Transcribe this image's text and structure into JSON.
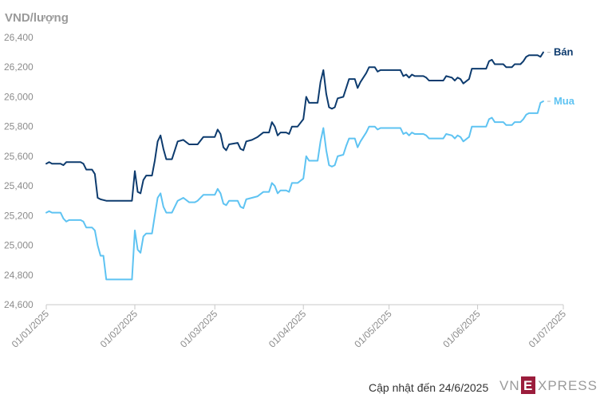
{
  "chart_data": {
    "type": "line",
    "ylabel": "VND/lượng",
    "ylim": [
      24600,
      26400
    ],
    "yticks": [
      "26,400",
      "26,200",
      "26,000",
      "25,800",
      "25,600",
      "25,400",
      "25,200",
      "25,000",
      "24,800",
      "24,600"
    ],
    "ytick_values": [
      26400,
      26200,
      26000,
      25800,
      25600,
      25400,
      25200,
      25000,
      24800,
      24600
    ],
    "xlim": [
      "2025-01-01",
      "2025-07-01"
    ],
    "xticks": [
      "01/01/2025",
      "01/02/2025",
      "01/03/2025",
      "01/04/2025",
      "01/05/2025",
      "01/06/2025",
      "01/07/2025"
    ],
    "xtick_dates": [
      "2025-01-01",
      "2025-02-01",
      "2025-03-01",
      "2025-04-01",
      "2025-05-01",
      "2025-06-01",
      "2025-07-01"
    ],
    "grid": false,
    "series": [
      {
        "name": "Bán",
        "color": "#0d3b6e",
        "points": [
          [
            "2025-01-01",
            25550
          ],
          [
            "2025-01-02",
            25560
          ],
          [
            "2025-01-03",
            25550
          ],
          [
            "2025-01-06",
            25550
          ],
          [
            "2025-01-07",
            25540
          ],
          [
            "2025-01-08",
            25560
          ],
          [
            "2025-01-13",
            25560
          ],
          [
            "2025-01-14",
            25550
          ],
          [
            "2025-01-15",
            25510
          ],
          [
            "2025-01-17",
            25510
          ],
          [
            "2025-01-18",
            25480
          ],
          [
            "2025-01-19",
            25320
          ],
          [
            "2025-01-20",
            25310
          ],
          [
            "2025-01-22",
            25300
          ],
          [
            "2025-01-27",
            25300
          ],
          [
            "2025-01-31",
            25300
          ],
          [
            "2025-02-01",
            25500
          ],
          [
            "2025-02-02",
            25360
          ],
          [
            "2025-02-03",
            25350
          ],
          [
            "2025-02-04",
            25440
          ],
          [
            "2025-02-05",
            25470
          ],
          [
            "2025-02-07",
            25470
          ],
          [
            "2025-02-08",
            25570
          ],
          [
            "2025-02-09",
            25700
          ],
          [
            "2025-02-10",
            25740
          ],
          [
            "2025-02-11",
            25650
          ],
          [
            "2025-02-12",
            25580
          ],
          [
            "2025-02-14",
            25580
          ],
          [
            "2025-02-16",
            25700
          ],
          [
            "2025-02-18",
            25710
          ],
          [
            "2025-02-20",
            25680
          ],
          [
            "2025-02-22",
            25680
          ],
          [
            "2025-02-23",
            25680
          ],
          [
            "2025-02-25",
            25730
          ],
          [
            "2025-02-27",
            25730
          ],
          [
            "2025-03-01",
            25730
          ],
          [
            "2025-03-02",
            25780
          ],
          [
            "2025-03-03",
            25750
          ],
          [
            "2025-03-04",
            25660
          ],
          [
            "2025-03-05",
            25640
          ],
          [
            "2025-03-06",
            25680
          ],
          [
            "2025-03-09",
            25690
          ],
          [
            "2025-03-10",
            25650
          ],
          [
            "2025-03-11",
            25640
          ],
          [
            "2025-03-12",
            25700
          ],
          [
            "2025-03-14",
            25710
          ],
          [
            "2025-03-16",
            25730
          ],
          [
            "2025-03-18",
            25760
          ],
          [
            "2025-03-20",
            25760
          ],
          [
            "2025-03-21",
            25830
          ],
          [
            "2025-03-22",
            25800
          ],
          [
            "2025-03-23",
            25740
          ],
          [
            "2025-03-24",
            25760
          ],
          [
            "2025-03-26",
            25760
          ],
          [
            "2025-03-27",
            25750
          ],
          [
            "2025-03-28",
            25800
          ],
          [
            "2025-03-30",
            25800
          ],
          [
            "2025-04-01",
            25850
          ],
          [
            "2025-04-02",
            26000
          ],
          [
            "2025-04-03",
            25960
          ],
          [
            "2025-04-06",
            25960
          ],
          [
            "2025-04-07",
            26100
          ],
          [
            "2025-04-08",
            26180
          ],
          [
            "2025-04-09",
            26020
          ],
          [
            "2025-04-10",
            25930
          ],
          [
            "2025-04-11",
            25920
          ],
          [
            "2025-04-12",
            25930
          ],
          [
            "2025-04-13",
            25990
          ],
          [
            "2025-04-15",
            26000
          ],
          [
            "2025-04-16",
            26060
          ],
          [
            "2025-04-17",
            26120
          ],
          [
            "2025-04-19",
            26120
          ],
          [
            "2025-04-20",
            26060
          ],
          [
            "2025-04-21",
            26100
          ],
          [
            "2025-04-23",
            26160
          ],
          [
            "2025-04-24",
            26200
          ],
          [
            "2025-04-26",
            26200
          ],
          [
            "2025-04-27",
            26170
          ],
          [
            "2025-04-28",
            26180
          ],
          [
            "2025-04-30",
            26180
          ],
          [
            "2025-05-05",
            26180
          ],
          [
            "2025-05-06",
            26140
          ],
          [
            "2025-05-07",
            26150
          ],
          [
            "2025-05-08",
            26130
          ],
          [
            "2025-05-09",
            26150
          ],
          [
            "2025-05-10",
            26140
          ],
          [
            "2025-05-13",
            26140
          ],
          [
            "2025-05-14",
            26130
          ],
          [
            "2025-05-15",
            26110
          ],
          [
            "2025-05-20",
            26110
          ],
          [
            "2025-05-21",
            26140
          ],
          [
            "2025-05-23",
            26130
          ],
          [
            "2025-05-24",
            26110
          ],
          [
            "2025-05-25",
            26130
          ],
          [
            "2025-05-26",
            26120
          ],
          [
            "2025-05-27",
            26090
          ],
          [
            "2025-05-29",
            26120
          ],
          [
            "2025-05-30",
            26190
          ],
          [
            "2025-06-04",
            26190
          ],
          [
            "2025-06-05",
            26240
          ],
          [
            "2025-06-06",
            26250
          ],
          [
            "2025-06-07",
            26220
          ],
          [
            "2025-06-10",
            26220
          ],
          [
            "2025-06-11",
            26200
          ],
          [
            "2025-06-13",
            26200
          ],
          [
            "2025-06-14",
            26220
          ],
          [
            "2025-06-16",
            26220
          ],
          [
            "2025-06-17",
            26240
          ],
          [
            "2025-06-18",
            26270
          ],
          [
            "2025-06-19",
            26280
          ],
          [
            "2025-06-22",
            26280
          ],
          [
            "2025-06-23",
            26270
          ],
          [
            "2025-06-24",
            26300
          ]
        ]
      },
      {
        "name": "Mua",
        "color": "#5ec3f2",
        "points": [
          [
            "2025-01-01",
            25220
          ],
          [
            "2025-01-02",
            25230
          ],
          [
            "2025-01-03",
            25220
          ],
          [
            "2025-01-06",
            25220
          ],
          [
            "2025-01-07",
            25180
          ],
          [
            "2025-01-08",
            25160
          ],
          [
            "2025-01-09",
            25170
          ],
          [
            "2025-01-13",
            25170
          ],
          [
            "2025-01-14",
            25160
          ],
          [
            "2025-01-15",
            25120
          ],
          [
            "2025-01-17",
            25120
          ],
          [
            "2025-01-18",
            25100
          ],
          [
            "2025-01-19",
            25000
          ],
          [
            "2025-01-20",
            24930
          ],
          [
            "2025-01-21",
            24930
          ],
          [
            "2025-01-22",
            24770
          ],
          [
            "2025-01-27",
            24770
          ],
          [
            "2025-01-31",
            24770
          ],
          [
            "2025-02-01",
            25100
          ],
          [
            "2025-02-02",
            24970
          ],
          [
            "2025-02-03",
            24950
          ],
          [
            "2025-02-04",
            25060
          ],
          [
            "2025-02-05",
            25080
          ],
          [
            "2025-02-07",
            25080
          ],
          [
            "2025-02-08",
            25200
          ],
          [
            "2025-02-09",
            25320
          ],
          [
            "2025-02-10",
            25350
          ],
          [
            "2025-02-11",
            25260
          ],
          [
            "2025-02-12",
            25220
          ],
          [
            "2025-02-14",
            25220
          ],
          [
            "2025-02-16",
            25300
          ],
          [
            "2025-02-18",
            25320
          ],
          [
            "2025-02-20",
            25290
          ],
          [
            "2025-02-22",
            25290
          ],
          [
            "2025-02-23",
            25300
          ],
          [
            "2025-02-25",
            25340
          ],
          [
            "2025-02-27",
            25340
          ],
          [
            "2025-03-01",
            25340
          ],
          [
            "2025-03-02",
            25380
          ],
          [
            "2025-03-03",
            25350
          ],
          [
            "2025-03-04",
            25280
          ],
          [
            "2025-03-05",
            25270
          ],
          [
            "2025-03-06",
            25300
          ],
          [
            "2025-03-09",
            25300
          ],
          [
            "2025-03-10",
            25260
          ],
          [
            "2025-03-11",
            25250
          ],
          [
            "2025-03-12",
            25310
          ],
          [
            "2025-03-14",
            25320
          ],
          [
            "2025-03-16",
            25330
          ],
          [
            "2025-03-18",
            25360
          ],
          [
            "2025-03-20",
            25360
          ],
          [
            "2025-03-21",
            25420
          ],
          [
            "2025-03-22",
            25400
          ],
          [
            "2025-03-23",
            25350
          ],
          [
            "2025-03-24",
            25370
          ],
          [
            "2025-03-26",
            25370
          ],
          [
            "2025-03-27",
            25360
          ],
          [
            "2025-03-28",
            25420
          ],
          [
            "2025-03-30",
            25420
          ],
          [
            "2025-04-01",
            25450
          ],
          [
            "2025-04-02",
            25600
          ],
          [
            "2025-04-03",
            25570
          ],
          [
            "2025-04-06",
            25570
          ],
          [
            "2025-04-07",
            25700
          ],
          [
            "2025-04-08",
            25790
          ],
          [
            "2025-04-09",
            25640
          ],
          [
            "2025-04-10",
            25540
          ],
          [
            "2025-04-11",
            25530
          ],
          [
            "2025-04-12",
            25540
          ],
          [
            "2025-04-13",
            25600
          ],
          [
            "2025-04-15",
            25610
          ],
          [
            "2025-04-16",
            25670
          ],
          [
            "2025-04-17",
            25720
          ],
          [
            "2025-04-19",
            25720
          ],
          [
            "2025-04-20",
            25660
          ],
          [
            "2025-04-21",
            25700
          ],
          [
            "2025-04-23",
            25760
          ],
          [
            "2025-04-24",
            25800
          ],
          [
            "2025-04-26",
            25800
          ],
          [
            "2025-04-27",
            25780
          ],
          [
            "2025-04-28",
            25790
          ],
          [
            "2025-04-30",
            25790
          ],
          [
            "2025-05-05",
            25790
          ],
          [
            "2025-05-06",
            25750
          ],
          [
            "2025-05-07",
            25760
          ],
          [
            "2025-05-08",
            25740
          ],
          [
            "2025-05-09",
            25760
          ],
          [
            "2025-05-10",
            25750
          ],
          [
            "2025-05-13",
            25750
          ],
          [
            "2025-05-14",
            25740
          ],
          [
            "2025-05-15",
            25720
          ],
          [
            "2025-05-20",
            25720
          ],
          [
            "2025-05-21",
            25750
          ],
          [
            "2025-05-23",
            25740
          ],
          [
            "2025-05-24",
            25720
          ],
          [
            "2025-05-25",
            25740
          ],
          [
            "2025-05-26",
            25730
          ],
          [
            "2025-05-27",
            25700
          ],
          [
            "2025-05-29",
            25730
          ],
          [
            "2025-05-30",
            25800
          ],
          [
            "2025-06-04",
            25800
          ],
          [
            "2025-06-05",
            25850
          ],
          [
            "2025-06-06",
            25860
          ],
          [
            "2025-06-07",
            25830
          ],
          [
            "2025-06-10",
            25830
          ],
          [
            "2025-06-11",
            25810
          ],
          [
            "2025-06-13",
            25810
          ],
          [
            "2025-06-14",
            25830
          ],
          [
            "2025-06-16",
            25830
          ],
          [
            "2025-06-17",
            25850
          ],
          [
            "2025-06-18",
            25880
          ],
          [
            "2025-06-19",
            25890
          ],
          [
            "2025-06-22",
            25890
          ],
          [
            "2025-06-23",
            25960
          ],
          [
            "2025-06-24",
            25970
          ]
        ]
      }
    ]
  },
  "footer": {
    "updated": "Cập nhật đến 24/6/2025",
    "brand_vn": "VN",
    "brand_e": "E",
    "brand_rest": "XPRESS"
  }
}
